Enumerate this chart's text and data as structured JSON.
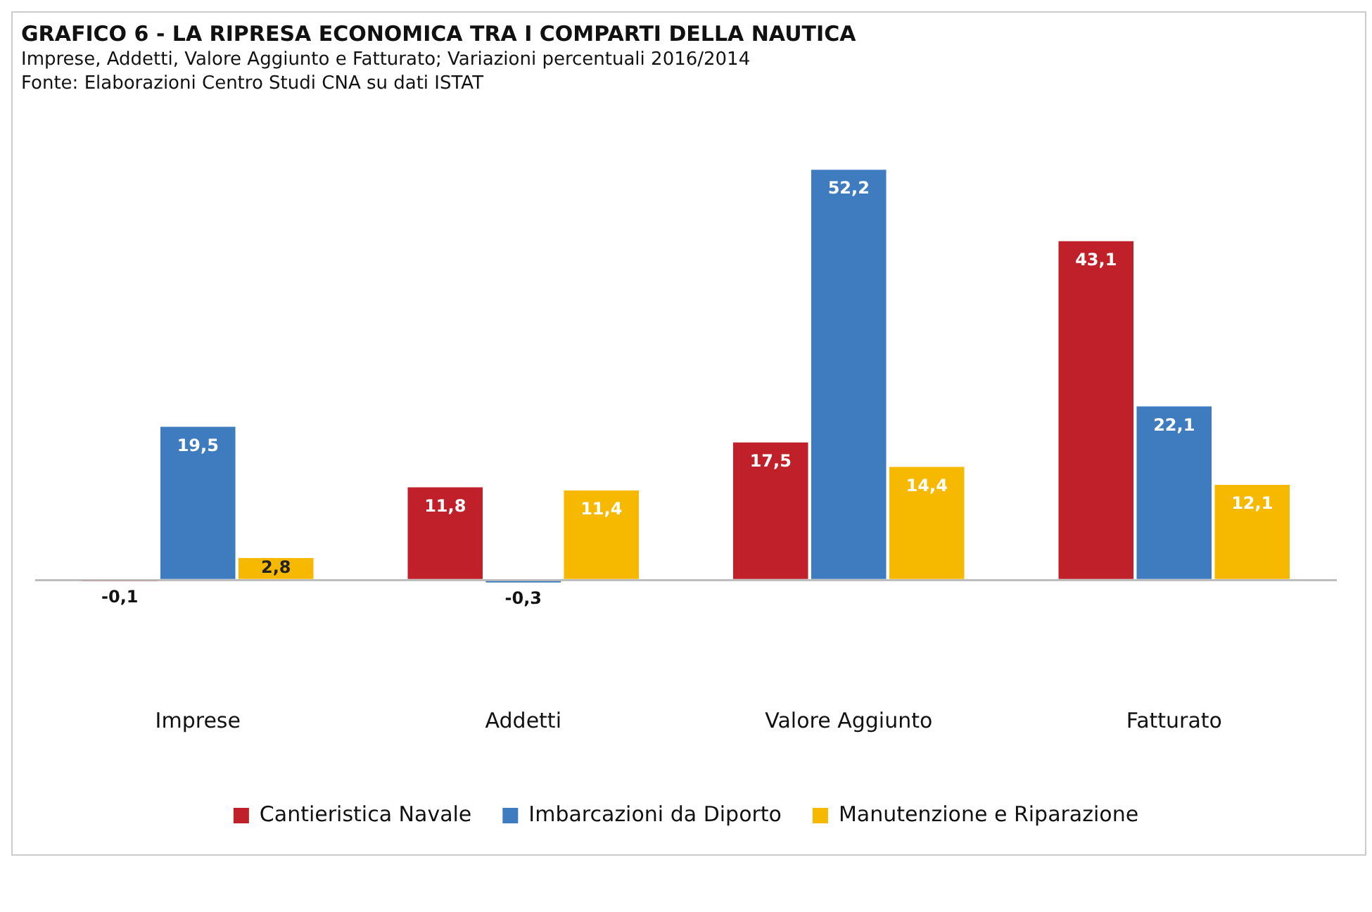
{
  "chart_data": {
    "type": "bar",
    "title": "GRAFICO 6 - LA RIPRESA ECONOMICA TRA I COMPARTI DELLA NAUTICA",
    "subtitle": "Imprese, Addetti, Valore Aggiunto e Fatturato; Variazioni percentuali 2016/2014",
    "annotations": [
      "Fonte: Elaborazioni Centro Studi CNA su dati ISTAT"
    ],
    "categories": [
      "Imprese",
      "Addetti",
      "Valore Aggiunto",
      "Fatturato"
    ],
    "series": [
      {
        "name": "Cantieristica Navale",
        "color": "#c0202a",
        "values": [
          -0.1,
          11.8,
          17.5,
          43.1
        ],
        "value_labels": [
          "-0,1",
          "11,8",
          "17,5",
          "43,1"
        ]
      },
      {
        "name": "Imbarcazioni da Diporto",
        "color": "#3f7cbf",
        "values": [
          19.5,
          -0.3,
          52.2,
          22.1
        ],
        "value_labels": [
          "19,5",
          "-0,3",
          "52,2",
          "22,1"
        ]
      },
      {
        "name": "Manutenzione e Riparazione",
        "color": "#f7b900",
        "values": [
          2.8,
          11.4,
          14.4,
          12.1
        ],
        "value_labels": [
          "2,8",
          "11,4",
          "14,4",
          "12,1"
        ]
      }
    ],
    "legend": "bottom",
    "grid": false
  }
}
